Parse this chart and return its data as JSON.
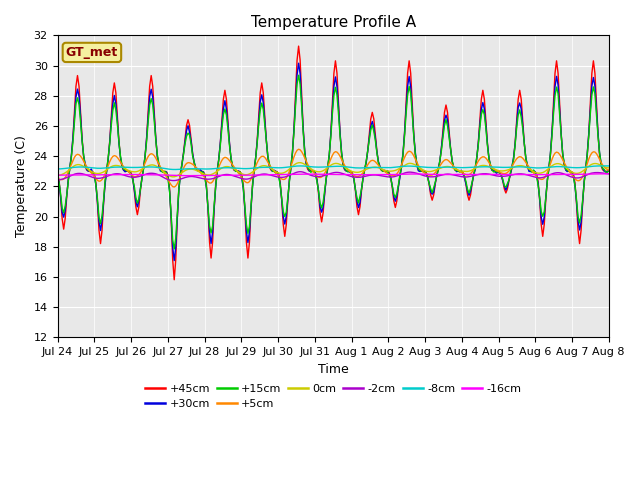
{
  "title": "Temperature Profile A",
  "xlabel": "Time",
  "ylabel": "Temperature (C)",
  "ylim": [
    12,
    32
  ],
  "gt_label": "GT_met",
  "tick_labels": [
    "Jul 24",
    "Jul 25",
    "Jul 26",
    "Jul 27",
    "Jul 28",
    "Jul 29",
    "Jul 30",
    "Jul 31",
    "Aug 1",
    "Aug 2",
    "Aug 3",
    "Aug 4",
    "Aug 5",
    "Aug 6",
    "Aug 7",
    "Aug 8"
  ],
  "series": [
    {
      "label": "+45cm",
      "color": "#ff0000",
      "lw": 1.0
    },
    {
      "label": "+30cm",
      "color": "#0000dd",
      "lw": 1.0
    },
    {
      "label": "+15cm",
      "color": "#00cc00",
      "lw": 1.0
    },
    {
      "label": "+5cm",
      "color": "#ff8800",
      "lw": 1.0
    },
    {
      "label": "0cm",
      "color": "#cccc00",
      "lw": 1.0
    },
    {
      "label": "-2cm",
      "color": "#aa00cc",
      "lw": 1.0
    },
    {
      "label": "-8cm",
      "color": "#00cccc",
      "lw": 1.0
    },
    {
      "label": "-16cm",
      "color": "#ff00ff",
      "lw": 1.0
    }
  ],
  "background_color": "#e8e8e8",
  "fig_background": "#ffffff",
  "title_fontsize": 11,
  "axis_label_fontsize": 9,
  "tick_fontsize": 8
}
